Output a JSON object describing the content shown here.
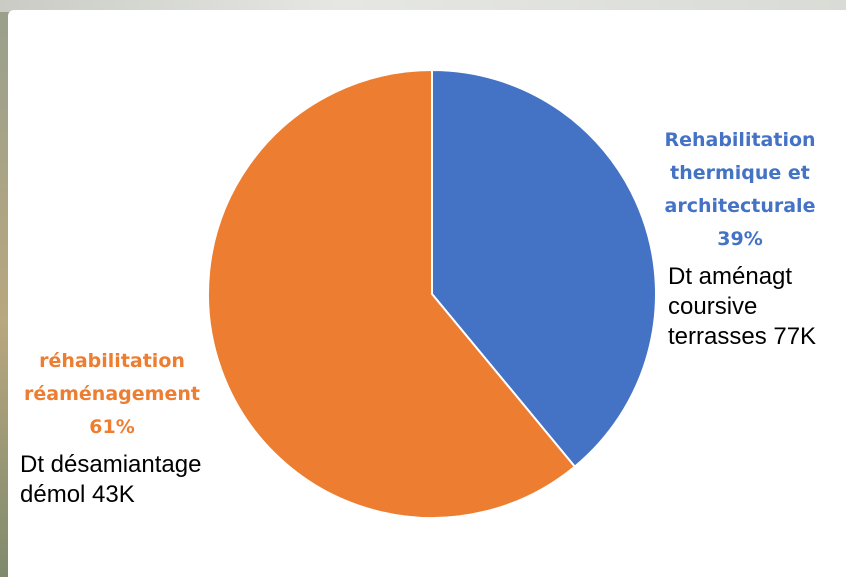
{
  "colors": {
    "rehab_thermique": "#4472c4",
    "rehab_reamenagement": "#ed7d31"
  },
  "chart_data": {
    "type": "pie",
    "categories": [
      "Rehabilitation thermique et architecturale",
      "réhabilitation réaménagement"
    ],
    "values": [
      39,
      61
    ],
    "unit": "%",
    "start_angle": "12 o'clock, clockwise",
    "slice_labels": [
      {
        "lines": [
          "Rehabilitation",
          "thermique et",
          "architecturale",
          "39%"
        ],
        "color": "#4472c4"
      },
      {
        "lines": [
          "réhabilitation",
          "réaménagement",
          "61%"
        ],
        "color": "#ed7d31"
      }
    ],
    "annotations": [
      {
        "lines": [
          "Dt aménagt",
          "coursive",
          "terrasses 77K"
        ]
      },
      {
        "lines": [
          "Dt désamiantage",
          "démol 43K"
        ]
      }
    ]
  }
}
